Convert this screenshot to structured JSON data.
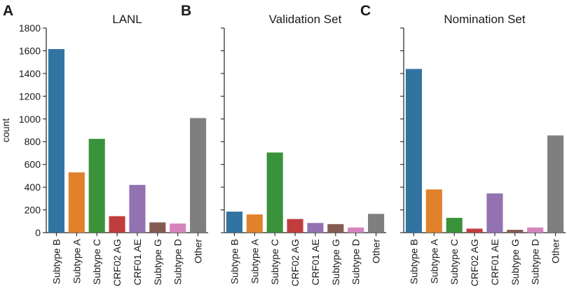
{
  "chart_data": [
    {
      "type": "bar",
      "panel": "A",
      "title": "LANL",
      "xlabel": "",
      "ylabel": "count",
      "ylim": [
        0,
        1800
      ],
      "yticks": [
        0,
        200,
        400,
        600,
        800,
        1000,
        1200,
        1400,
        1600,
        1800
      ],
      "categories": [
        "Subtype B",
        "Subtype A",
        "Subtype C",
        "CRF02 AG",
        "CRF01 AE",
        "Subtype G",
        "Subtype D",
        "Other"
      ],
      "values": [
        1615,
        530,
        825,
        145,
        420,
        90,
        80,
        1008
      ],
      "colors": [
        "#3274a1",
        "#e1812c",
        "#3a923a",
        "#c03d3e",
        "#9372b2",
        "#845b53",
        "#d684bd",
        "#7f7f7f"
      ]
    },
    {
      "type": "bar",
      "panel": "B",
      "title": "Validation Set",
      "xlabel": "",
      "ylabel": "",
      "ylim": [
        0,
        1800
      ],
      "yticks": [
        0,
        200,
        400,
        600,
        800,
        1000,
        1200,
        1400,
        1600,
        1800
      ],
      "categories": [
        "Subtype B",
        "Subtype A",
        "Subtype C",
        "CRF02 AG",
        "CRF01 AE",
        "Subtype G",
        "Subtype D",
        "Other"
      ],
      "values": [
        185,
        160,
        705,
        120,
        85,
        75,
        45,
        165
      ],
      "colors": [
        "#3274a1",
        "#e1812c",
        "#3a923a",
        "#c03d3e",
        "#9372b2",
        "#845b53",
        "#d684bd",
        "#7f7f7f"
      ]
    },
    {
      "type": "bar",
      "panel": "C",
      "title": "Nomination Set",
      "xlabel": "",
      "ylabel": "",
      "ylim": [
        0,
        1800
      ],
      "yticks": [
        0,
        200,
        400,
        600,
        800,
        1000,
        1200,
        1400,
        1600,
        1800
      ],
      "categories": [
        "Subtype B",
        "Subtype A",
        "Subtype C",
        "CRF02 AG",
        "CRF01 AE",
        "Subtype G",
        "Subtype D",
        "Other"
      ],
      "values": [
        1440,
        380,
        130,
        35,
        345,
        25,
        45,
        855
      ],
      "colors": [
        "#3274a1",
        "#e1812c",
        "#3a923a",
        "#c03d3e",
        "#9372b2",
        "#845b53",
        "#d684bd",
        "#7f7f7f"
      ]
    }
  ]
}
